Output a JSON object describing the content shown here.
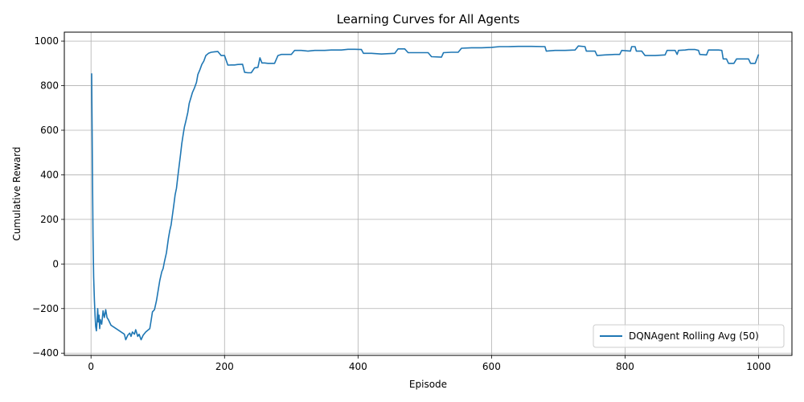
{
  "chart_data": {
    "type": "line",
    "title": "Learning Curves for All Agents",
    "xlabel": "Episode",
    "ylabel": "Cumulative Reward",
    "xlim": [
      -40,
      1050
    ],
    "ylim": [
      -410,
      1040
    ],
    "xticks": [
      0,
      200,
      400,
      600,
      800,
      1000
    ],
    "yticks": [
      -400,
      -200,
      0,
      200,
      400,
      600,
      800,
      1000
    ],
    "grid": true,
    "legend": {
      "position": "bottom-right"
    },
    "series": [
      {
        "name": "DQNAgent Rolling Avg (50)",
        "color": "#1f77b4",
        "points": [
          [
            1,
            855
          ],
          [
            2,
            450
          ],
          [
            3,
            120
          ],
          [
            4,
            -60
          ],
          [
            5,
            -160
          ],
          [
            6,
            -230
          ],
          [
            7,
            -280
          ],
          [
            8,
            -300
          ],
          [
            9,
            -260
          ],
          [
            10,
            -200
          ],
          [
            11,
            -260
          ],
          [
            12,
            -230
          ],
          [
            13,
            -290
          ],
          [
            14,
            -250
          ],
          [
            16,
            -270
          ],
          [
            18,
            -210
          ],
          [
            20,
            -240
          ],
          [
            22,
            -205
          ],
          [
            24,
            -240
          ],
          [
            26,
            -250
          ],
          [
            30,
            -275
          ],
          [
            40,
            -295
          ],
          [
            50,
            -315
          ],
          [
            52,
            -340
          ],
          [
            55,
            -320
          ],
          [
            58,
            -310
          ],
          [
            60,
            -325
          ],
          [
            62,
            -305
          ],
          [
            65,
            -315
          ],
          [
            67,
            -295
          ],
          [
            70,
            -325
          ],
          [
            72,
            -315
          ],
          [
            75,
            -340
          ],
          [
            78,
            -320
          ],
          [
            82,
            -305
          ],
          [
            86,
            -295
          ],
          [
            88,
            -290
          ],
          [
            90,
            -255
          ],
          [
            92,
            -215
          ],
          [
            95,
            -205
          ],
          [
            98,
            -165
          ],
          [
            100,
            -130
          ],
          [
            103,
            -75
          ],
          [
            106,
            -35
          ],
          [
            108,
            -20
          ],
          [
            110,
            10
          ],
          [
            113,
            50
          ],
          [
            116,
            115
          ],
          [
            118,
            150
          ],
          [
            120,
            175
          ],
          [
            122,
            220
          ],
          [
            124,
            265
          ],
          [
            126,
            310
          ],
          [
            128,
            340
          ],
          [
            130,
            390
          ],
          [
            132,
            440
          ],
          [
            134,
            490
          ],
          [
            136,
            540
          ],
          [
            138,
            580
          ],
          [
            140,
            615
          ],
          [
            142,
            640
          ],
          [
            145,
            680
          ],
          [
            147,
            720
          ],
          [
            150,
            750
          ],
          [
            152,
            770
          ],
          [
            155,
            790
          ],
          [
            158,
            815
          ],
          [
            160,
            850
          ],
          [
            163,
            870
          ],
          [
            166,
            895
          ],
          [
            169,
            910
          ],
          [
            172,
            935
          ],
          [
            176,
            945
          ],
          [
            180,
            950
          ],
          [
            185,
            952
          ],
          [
            190,
            953
          ],
          [
            195,
            935
          ],
          [
            200,
            935
          ],
          [
            205,
            892
          ],
          [
            210,
            893
          ],
          [
            215,
            893
          ],
          [
            220,
            895
          ],
          [
            227,
            896
          ],
          [
            230,
            860
          ],
          [
            235,
            858
          ],
          [
            240,
            858
          ],
          [
            245,
            880
          ],
          [
            250,
            882
          ],
          [
            253,
            925
          ],
          [
            256,
            902
          ],
          [
            260,
            902
          ],
          [
            265,
            900
          ],
          [
            275,
            900
          ],
          [
            280,
            935
          ],
          [
            285,
            940
          ],
          [
            290,
            940
          ],
          [
            300,
            940
          ],
          [
            305,
            958
          ],
          [
            315,
            958
          ],
          [
            325,
            955
          ],
          [
            335,
            958
          ],
          [
            350,
            958
          ],
          [
            360,
            960
          ],
          [
            375,
            960
          ],
          [
            385,
            963
          ],
          [
            395,
            963
          ],
          [
            405,
            962
          ],
          [
            408,
            945
          ],
          [
            420,
            945
          ],
          [
            435,
            942
          ],
          [
            455,
            945
          ],
          [
            460,
            965
          ],
          [
            470,
            965
          ],
          [
            475,
            948
          ],
          [
            490,
            948
          ],
          [
            505,
            948
          ],
          [
            510,
            930
          ],
          [
            525,
            928
          ],
          [
            528,
            948
          ],
          [
            540,
            950
          ],
          [
            550,
            950
          ],
          [
            555,
            968
          ],
          [
            570,
            970
          ],
          [
            585,
            970
          ],
          [
            600,
            972
          ],
          [
            612,
            975
          ],
          [
            625,
            975
          ],
          [
            640,
            976
          ],
          [
            660,
            976
          ],
          [
            680,
            975
          ],
          [
            682,
            955
          ],
          [
            695,
            958
          ],
          [
            710,
            958
          ],
          [
            725,
            960
          ],
          [
            730,
            978
          ],
          [
            740,
            975
          ],
          [
            742,
            955
          ],
          [
            755,
            955
          ],
          [
            758,
            935
          ],
          [
            770,
            938
          ],
          [
            785,
            940
          ],
          [
            792,
            940
          ],
          [
            795,
            958
          ],
          [
            808,
            955
          ],
          [
            810,
            975
          ],
          [
            815,
            975
          ],
          [
            817,
            955
          ],
          [
            825,
            955
          ],
          [
            830,
            935
          ],
          [
            845,
            935
          ],
          [
            860,
            938
          ],
          [
            863,
            958
          ],
          [
            875,
            958
          ],
          [
            878,
            940
          ],
          [
            880,
            958
          ],
          [
            890,
            960
          ],
          [
            895,
            962
          ],
          [
            905,
            962
          ],
          [
            910,
            958
          ],
          [
            912,
            940
          ],
          [
            922,
            938
          ],
          [
            925,
            960
          ],
          [
            940,
            960
          ],
          [
            945,
            958
          ],
          [
            947,
            920
          ],
          [
            952,
            920
          ],
          [
            955,
            900
          ],
          [
            963,
            900
          ],
          [
            967,
            920
          ],
          [
            985,
            920
          ],
          [
            988,
            900
          ],
          [
            995,
            900
          ],
          [
            1000,
            940
          ]
        ]
      }
    ]
  }
}
